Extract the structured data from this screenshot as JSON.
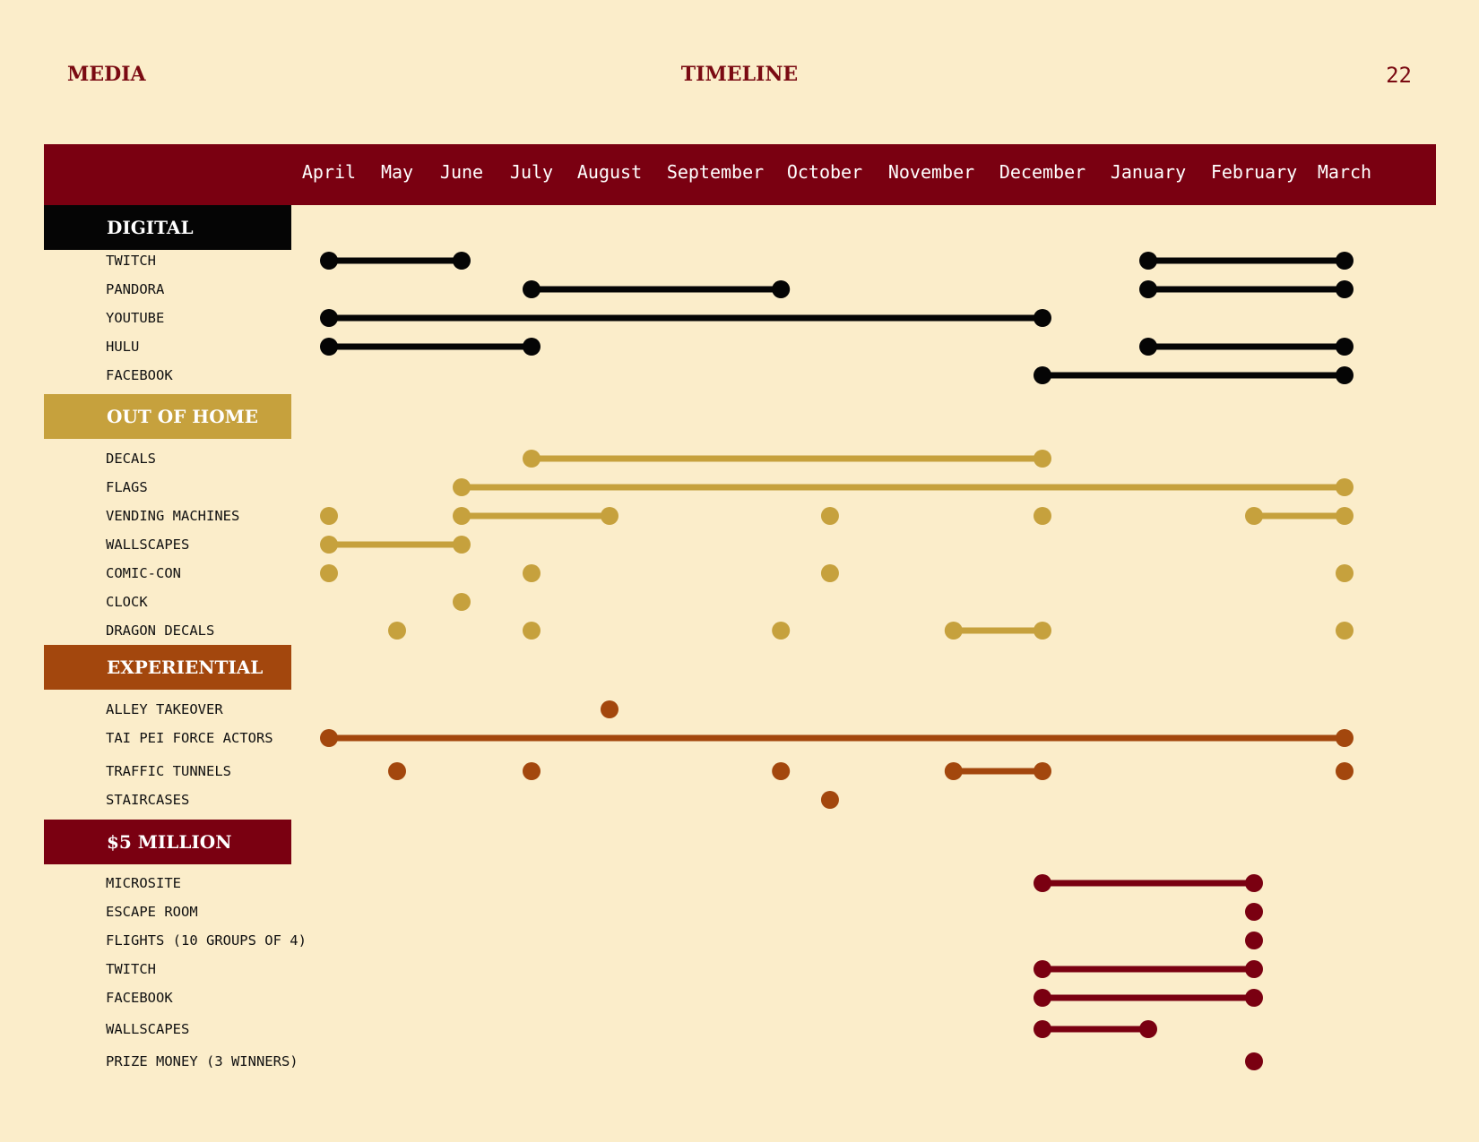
{
  "header": {
    "left": "MEDIA",
    "center": "TIMELINE",
    "page_number": "22"
  },
  "months": [
    "April",
    "May",
    "June",
    "July",
    "August",
    "September",
    "October",
    "November",
    "December",
    "January",
    "February",
    "March"
  ],
  "colors": {
    "header_bar": "#7a0011",
    "digital": "#050505",
    "out_of_home": "#c6a13d",
    "experiential": "#a3470d",
    "five_million": "#7a0011",
    "background": "#fbedca"
  },
  "sections": [
    {
      "title": "DIGITAL",
      "color_key": "digital",
      "rows": [
        {
          "label": "TWITCH",
          "items": [
            [
              0,
              2
            ],
            [
              9,
              11
            ]
          ]
        },
        {
          "label": "PANDORA",
          "items": [
            [
              3,
              5.6
            ],
            [
              9,
              11
            ]
          ]
        },
        {
          "label": "YOUTUBE",
          "items": [
            [
              0,
              8
            ]
          ]
        },
        {
          "label": "HULU",
          "items": [
            [
              0,
              3
            ],
            [
              9,
              11
            ]
          ]
        },
        {
          "label": "FACEBOOK",
          "items": [
            [
              8,
              11
            ]
          ]
        }
      ]
    },
    {
      "title": "OUT OF HOME",
      "color_key": "out_of_home",
      "rows": [
        {
          "label": "DECALS",
          "items": [
            [
              3,
              8
            ]
          ]
        },
        {
          "label": "FLAGS",
          "items": [
            [
              2,
              11
            ]
          ]
        },
        {
          "label": "VENDING MACHINES",
          "items": [
            [
              0
            ],
            [
              2,
              4
            ],
            [
              6.05
            ],
            [
              8
            ],
            [
              10,
              11
            ]
          ]
        },
        {
          "label": "WALLSCAPES",
          "items": [
            [
              0,
              2
            ]
          ]
        },
        {
          "label": "COMIC-CON",
          "items": [
            [
              0
            ],
            [
              3
            ],
            [
              6.05
            ],
            [
              11
            ]
          ]
        },
        {
          "label": "CLOCK",
          "items": [
            [
              2
            ]
          ]
        },
        {
          "label": "DRAGON DECALS",
          "items": [
            [
              1
            ],
            [
              3
            ],
            [
              5.6
            ],
            [
              7.2,
              8
            ],
            [
              11
            ]
          ]
        }
      ]
    },
    {
      "title": "EXPERIENTIAL",
      "color_key": "experiential",
      "rows": [
        {
          "label": "ALLEY TAKEOVER",
          "items": [
            [
              4
            ]
          ]
        },
        {
          "label": "TAI PEI FORCE ACTORS",
          "items": [
            [
              0,
              11
            ]
          ]
        },
        {
          "label": "TRAFFIC TUNNELS",
          "items": [
            [
              1
            ],
            [
              3
            ],
            [
              5.6
            ],
            [
              7.2,
              8
            ],
            [
              11
            ]
          ]
        },
        {
          "label": "STAIRCASES",
          "items": [
            [
              6.05
            ]
          ]
        }
      ]
    },
    {
      "title": "$5 MILLION",
      "color_key": "five_million",
      "rows": [
        {
          "label": "MICROSITE",
          "items": [
            [
              8,
              10
            ]
          ]
        },
        {
          "label": "ESCAPE ROOM",
          "items": [
            [
              10
            ]
          ]
        },
        {
          "label": "FLIGHTS (10 GROUPS OF 4)",
          "items": [
            [
              10
            ]
          ]
        },
        {
          "label": "TWITCH",
          "items": [
            [
              8,
              10
            ]
          ]
        },
        {
          "label": "FACEBOOK",
          "items": [
            [
              8,
              10
            ]
          ]
        },
        {
          "label": "WALLSCAPES",
          "items": [
            [
              8,
              9
            ]
          ]
        },
        {
          "label": "PRIZE MONEY (3 WINNERS)",
          "items": [
            [
              10
            ]
          ]
        }
      ]
    }
  ]
}
